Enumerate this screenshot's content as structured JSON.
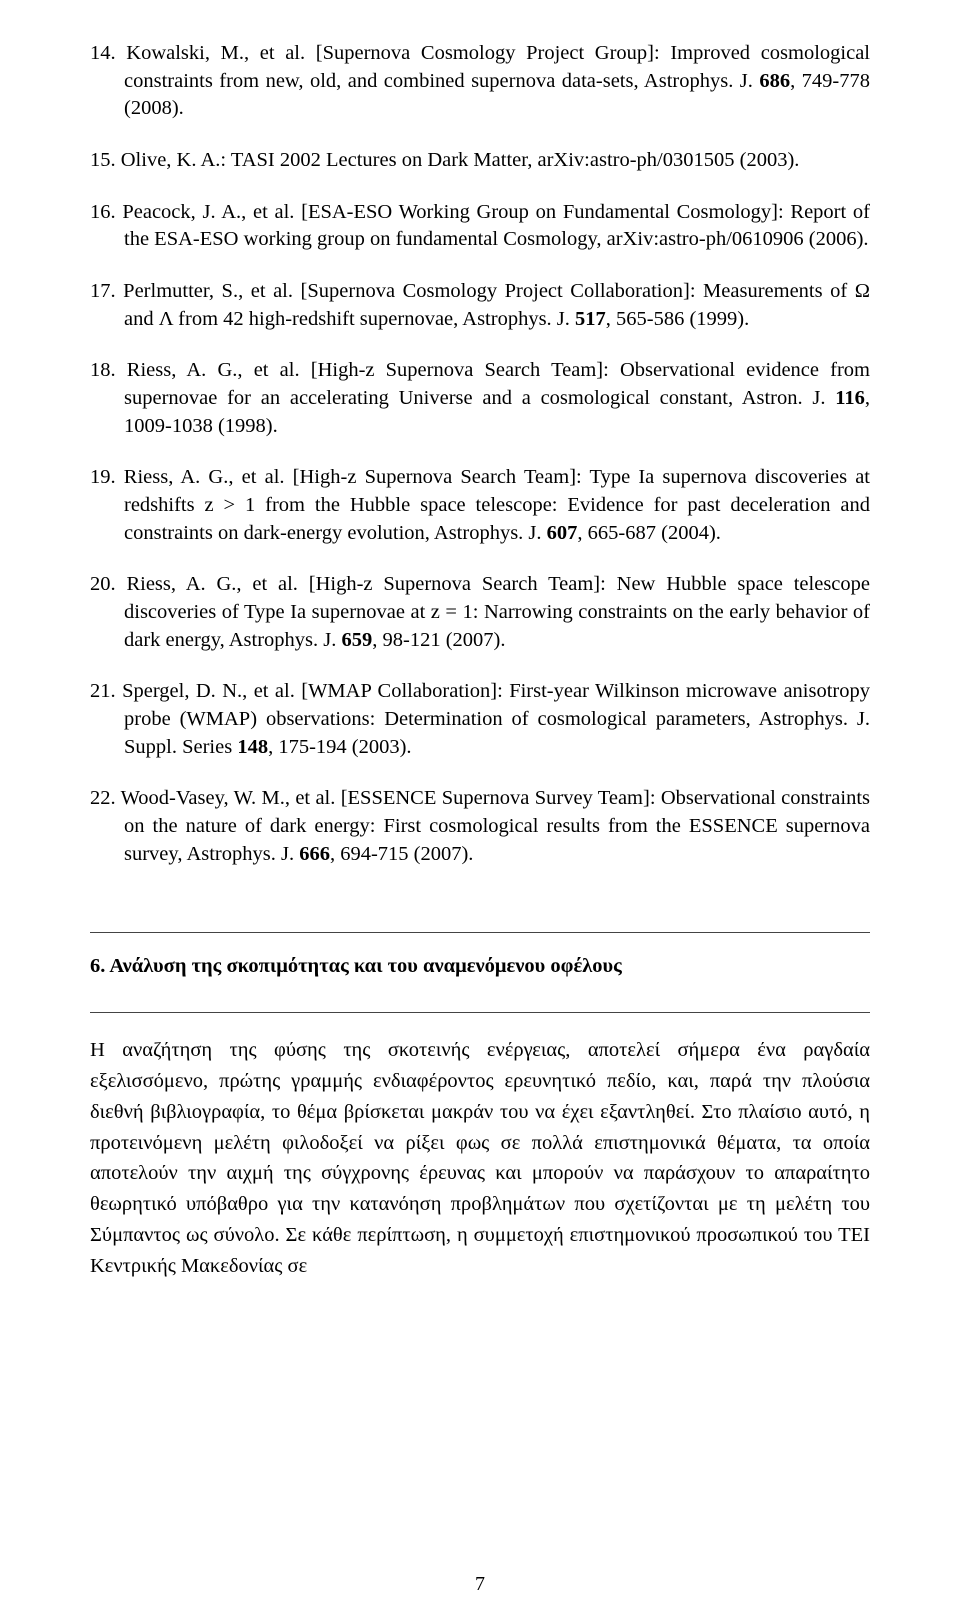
{
  "references": [
    {
      "num": "14.",
      "pre": "Kowalski, M., et al. [Supernova Cosmology Project Group]: Improved cosmological constraints from new, old, and combined supernova data-sets, Astrophys. J. ",
      "bold": "686",
      "post": ", 749-778 (2008)."
    },
    {
      "num": "15.",
      "pre": "Olive, K. A.: TASI 2002 Lectures on Dark Matter, arXiv:astro-ph/0301505 (2003).",
      "bold": "",
      "post": ""
    },
    {
      "num": "16.",
      "pre": "Peacock, J. A., et al. [ESA-ESO Working Group on Fundamental Cosmology]: Report of the ESA-ESO working group on fundamental Cosmology, arXiv:astro-ph/0610906 (2006).",
      "bold": "",
      "post": ""
    },
    {
      "num": "17.",
      "pre": "Perlmutter, S., et al. [Supernova Cosmology Project Collaboration]: Measurements of Ω and Λ from 42 high-redshift supernovae, Astrophys. J. ",
      "bold": "517",
      "post": ", 565-586 (1999)."
    },
    {
      "num": "18.",
      "pre": "Riess, A. G., et al. [High-z Supernova Search Team]: Observational evidence from supernovae for an accelerating Universe and a cosmological constant, Astron. J. ",
      "bold": "116",
      "post": ", 1009-1038 (1998)."
    },
    {
      "num": "19.",
      "pre": "Riess, A. G., et al. [High-z Supernova Search Team]: Type Ia supernova discoveries at redshifts z > 1 from the Hubble space telescope: Evidence for past deceleration and constraints on dark-energy evolution, Astrophys. J. ",
      "bold": "607",
      "post": ", 665-687 (2004)."
    },
    {
      "num": "20.",
      "pre": "Riess, A. G., et al. [High-z Supernova Search Team]: New Hubble space telescope discoveries of Type Ia supernovae at z = 1: Narrowing constraints on the early behavior of dark energy, Astrophys. J. ",
      "bold": "659",
      "post": ", 98-121 (2007)."
    },
    {
      "num": "21.",
      "pre": "Spergel, D. N., et al. [WMAP Collaboration]: First-year Wilkinson microwave anisotropy probe (WMAP) observations: Determination of cosmological parameters, Astrophys. J. Suppl. Series ",
      "bold": "148",
      "post": ", 175-194 (2003)."
    },
    {
      "num": "22.",
      "pre": "Wood-Vasey, W. M., et al. [ESSENCE Supernova Survey Team]: Observational constraints on the nature of dark energy: First cosmological results from the ESSENCE supernova survey, Astrophys. J. ",
      "bold": "666",
      "post": ", 694-715 (2007)."
    }
  ],
  "section": {
    "heading": "6. Ανάλυση της σκοπιμότητας και του αναμενόμενου οφέλους",
    "paragraph": "Η αναζήτηση της φύσης της σκοτεινής ενέργειας, αποτελεί σήμερα ένα ραγδαία εξελισσόμενο, πρώτης γραμμής ενδιαφέροντος ερευνητικό πεδίο, και, παρά την πλούσια διεθνή βιβλιογραφία, το θέμα βρίσκεται μακράν του να έχει εξαντληθεί. Στο πλαίσιο αυτό, η προτεινόμενη μελέτη φιλοδοξεί να ρίξει φως σε πολλά επιστημονικά θέματα, τα οποία αποτελούν την αιχμή της σύγχρονης έρευνας και μπορούν να παράσχουν το απαραίτητο θεωρητικό υπόβαθρο για την κατανόηση προβλημάτων που σχετίζονται με τη μελέτη του Σύμπαντος ως σύνολο. Σε κάθε περίπτωση, η συμμετοχή επιστημονικού προσωπικού του ΤΕΙ Κεντρικής Μακεδονίας σε"
  },
  "page_number": "7"
}
